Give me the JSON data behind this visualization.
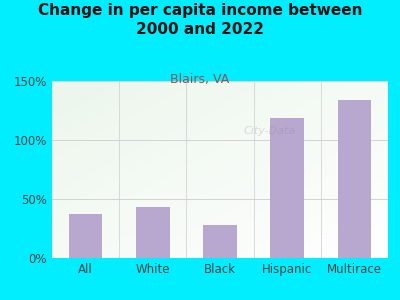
{
  "title": "Change in per capita income between\n2000 and 2022",
  "subtitle": "Blairs, VA",
  "categories": [
    "All",
    "White",
    "Black",
    "Hispanic",
    "Multirace"
  ],
  "values": [
    37,
    43,
    28,
    119,
    134
  ],
  "bar_color": "#b8a8d0",
  "title_fontsize": 11,
  "subtitle_fontsize": 9,
  "tick_fontsize": 8.5,
  "background_outer": "#00eeff",
  "ylim": [
    0,
    150
  ],
  "yticks": [
    0,
    50,
    100,
    150
  ],
  "ytick_labels": [
    "0%",
    "50%",
    "100%",
    "150%"
  ],
  "grid_color": "#cccccc",
  "subtitle_color": "#885555",
  "title_color": "#111111",
  "tick_color": "#444444",
  "watermark_text": "City-Data",
  "watermark_alpha": 0.25
}
